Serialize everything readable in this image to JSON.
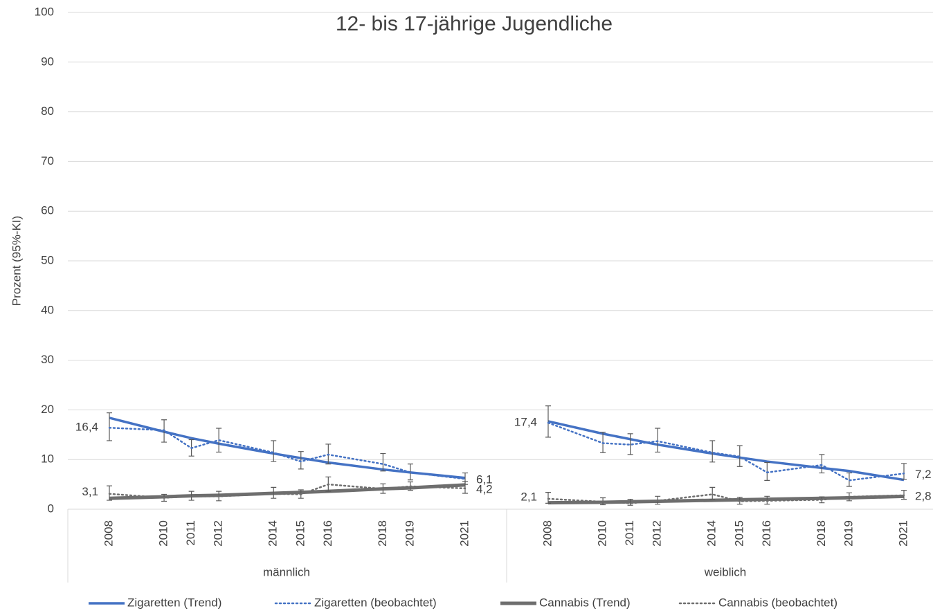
{
  "chart_data": {
    "type": "line",
    "title": "12- bis 17-jährige Jugendliche",
    "y_label": "Prozent (95%-KI)",
    "groups": [
      "männlich",
      "weiblich"
    ],
    "x": [
      2008,
      2010,
      2011,
      2012,
      2014,
      2015,
      2016,
      2018,
      2019,
      2021
    ],
    "ylim": [
      0,
      100
    ],
    "yticks": [
      0,
      10,
      20,
      30,
      40,
      50,
      60,
      70,
      80,
      90,
      100
    ],
    "grid": true,
    "legend": "bottom",
    "series": [
      {
        "name": "Zigaretten (Trend)",
        "color": "#4472c4",
        "style": "solid",
        "values": [
          [
            18.4,
            15.6,
            14.3,
            13.2,
            11.2,
            10.3,
            9.4,
            8.0,
            7.4,
            6.3
          ],
          [
            17.7,
            15.2,
            14.1,
            13.0,
            11.2,
            10.4,
            9.6,
            8.3,
            7.7,
            5.9
          ]
        ]
      },
      {
        "name": "Zigaretten (beobachtet)",
        "color": "#4472c4",
        "style": "dotted",
        "values": [
          [
            16.4,
            15.9,
            12.3,
            13.9,
            11.4,
            9.6,
            11.0,
            9.1,
            7.4,
            6.1
          ],
          [
            17.4,
            13.3,
            13.0,
            13.7,
            11.4,
            10.6,
            7.4,
            8.9,
            5.8,
            7.2
          ]
        ],
        "value_labels": [
          [
            "16,4",
            null,
            null,
            null,
            null,
            null,
            null,
            null,
            null,
            "6,1"
          ],
          [
            "17,4",
            null,
            null,
            null,
            null,
            null,
            null,
            null,
            null,
            "7,2"
          ]
        ],
        "ci_low": [
          [
            13.8,
            13.5,
            10.7,
            11.5,
            9.6,
            8.1,
            9.1,
            7.7,
            5.9,
            5.0
          ],
          [
            14.5,
            11.4,
            11.0,
            11.5,
            9.5,
            8.6,
            5.8,
            7.3,
            4.6,
            6.0
          ]
        ],
        "ci_high": [
          [
            19.4,
            18.0,
            14.0,
            16.3,
            13.8,
            11.6,
            13.1,
            11.2,
            9.1,
            7.3
          ],
          [
            20.8,
            15.5,
            15.2,
            16.3,
            13.8,
            12.8,
            9.4,
            11.0,
            7.3,
            9.2
          ]
        ]
      },
      {
        "name": "Cannabis (Trend)",
        "color": "#6e6e6e",
        "style": "solid",
        "values": [
          [
            2.2,
            2.5,
            2.7,
            2.8,
            3.2,
            3.4,
            3.6,
            4.1,
            4.3,
            4.9
          ],
          [
            1.3,
            1.4,
            1.5,
            1.6,
            1.8,
            1.9,
            2.0,
            2.2,
            2.3,
            2.6
          ]
        ]
      },
      {
        "name": "Cannabis (beobachtet)",
        "color": "#6e6e6e",
        "style": "dotted",
        "values": [
          [
            3.1,
            2.3,
            2.6,
            2.6,
            3.1,
            3.0,
            5.0,
            4.1,
            4.6,
            4.2
          ],
          [
            2.1,
            1.5,
            1.2,
            1.7,
            3.0,
            1.6,
            1.7,
            1.9,
            2.5,
            2.8
          ]
        ],
        "value_labels": [
          [
            "3,1",
            null,
            null,
            null,
            null,
            null,
            null,
            null,
            null,
            "4,2"
          ],
          [
            "2,1",
            null,
            null,
            null,
            null,
            null,
            null,
            null,
            null,
            "2,8"
          ]
        ],
        "ci_low": [
          [
            1.8,
            1.6,
            1.8,
            1.7,
            2.2,
            2.2,
            3.6,
            3.2,
            3.8,
            3.2
          ],
          [
            1.2,
            0.9,
            0.8,
            1.0,
            2.0,
            1.0,
            1.0,
            1.3,
            1.7,
            2.0
          ]
        ],
        "ci_high": [
          [
            4.7,
            3.0,
            3.6,
            3.6,
            4.4,
            3.9,
            6.5,
            5.1,
            5.5,
            5.6
          ],
          [
            3.4,
            2.3,
            2.0,
            2.6,
            4.4,
            2.4,
            2.6,
            2.5,
            3.3,
            3.8
          ]
        ]
      }
    ]
  }
}
